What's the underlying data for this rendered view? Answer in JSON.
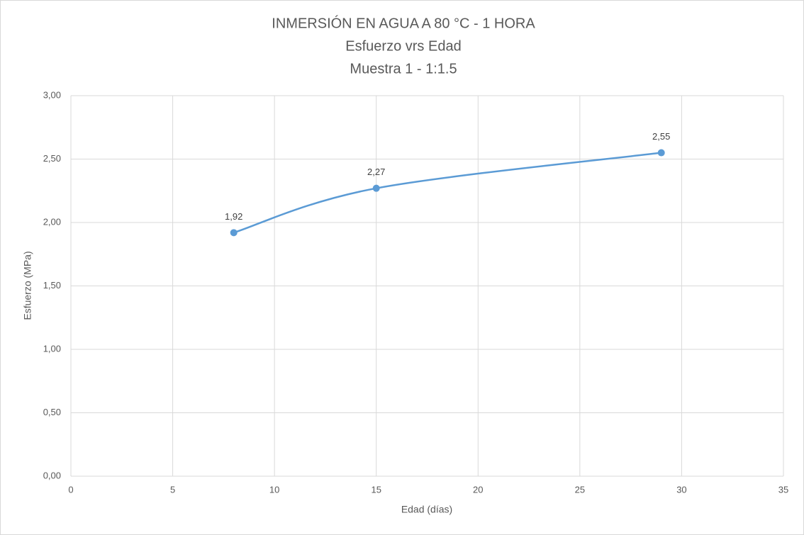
{
  "chart_data": {
    "type": "line",
    "smooth": true,
    "title": [
      "INMERSIÓN EN AGUA A 80 °C - 1 HORA",
      "Esfuerzo vrs Edad",
      "Muestra 1 - 1:1.5"
    ],
    "x_label": "Edad (días)",
    "y_label": "Esfuerzo (MPa)",
    "x": [
      8,
      15,
      29
    ],
    "values": [
      1.92,
      2.27,
      2.55
    ],
    "value_labels": [
      "1,92",
      "2,27",
      "2,55"
    ],
    "color": "#5b9bd5",
    "xlim": [
      0,
      35
    ],
    "xticks": [
      0,
      5,
      10,
      15,
      20,
      25,
      30,
      35
    ],
    "ylim": [
      0,
      3
    ],
    "yticks": [
      {
        "value": 0,
        "label": "0,00"
      },
      {
        "value": 0.5,
        "label": "0,50"
      },
      {
        "value": 1,
        "label": "1,00"
      },
      {
        "value": 1.5,
        "label": "1,50"
      },
      {
        "value": 2,
        "label": "2,00"
      },
      {
        "value": 2.5,
        "label": "2,50"
      },
      {
        "value": 3,
        "label": "3,00"
      }
    ],
    "grid": true
  }
}
